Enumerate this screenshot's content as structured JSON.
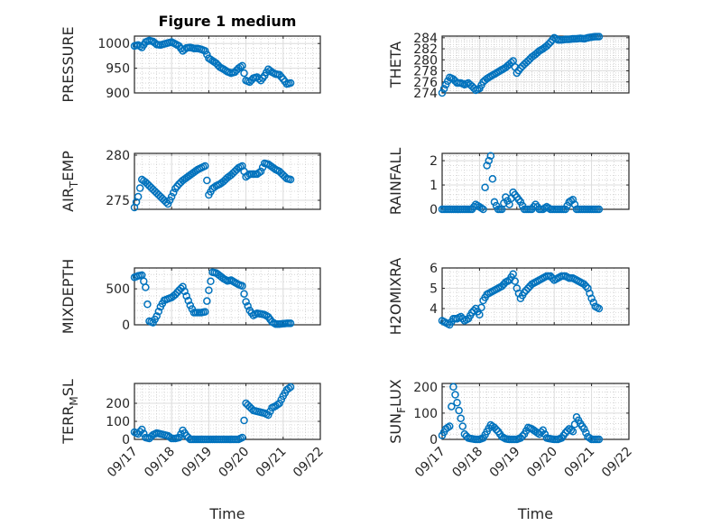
{
  "chart_data": {
    "type": "scatter",
    "title": "Figure 1 medium",
    "xlabel": "Time",
    "x_tick_labels": [
      "09/17",
      "09/18",
      "09/19",
      "09/20",
      "09/21",
      "09/22"
    ],
    "x_units": "days since 09/17",
    "xlim": [
      0,
      5
    ],
    "x": [
      0,
      0.1,
      0.2,
      0.3,
      0.4,
      0.5,
      0.6,
      0.7,
      0.8,
      0.9,
      1.0,
      1.1,
      1.2,
      1.3,
      1.4,
      1.5,
      1.6,
      1.7,
      1.8,
      1.9,
      2.0,
      2.1,
      2.2,
      2.3,
      2.4,
      2.5,
      2.6,
      2.7,
      2.8,
      2.9,
      3.0,
      3.1,
      3.2,
      3.3,
      3.4,
      3.5,
      3.6,
      3.7,
      3.8,
      3.9,
      4.0,
      4.1,
      4.2
    ],
    "marker_color": "#0072BD",
    "grid": "major+minor",
    "subplots": [
      {
        "ylabel": "PRESSURE",
        "ylim": [
          900,
          1015
        ],
        "yticks": [
          900,
          950,
          1000
        ],
        "values": [
          995,
          997,
          992,
          1003,
          1006,
          1004,
          998,
          997,
          999,
          1001,
          1003,
          999,
          995,
          985,
          991,
          992,
          990,
          990,
          988,
          985,
          970,
          965,
          960,
          952,
          948,
          943,
          940,
          942,
          950,
          955,
          925,
          922,
          930,
          932,
          925,
          935,
          948,
          942,
          938,
          937,
          928,
          918,
          920
        ]
      },
      {
        "ylabel": "THETA",
        "ylim": [
          274,
          284.3
        ],
        "yticks": [
          274,
          276,
          278,
          280,
          282,
          284
        ],
        "values": [
          274,
          275.5,
          276.8,
          276.5,
          275.8,
          275.8,
          275.5,
          275.8,
          275.2,
          274.5,
          274.8,
          276,
          276.6,
          277,
          277.4,
          277.8,
          278.2,
          278.6,
          279.2,
          279.8,
          277.6,
          278.5,
          279.2,
          279.8,
          280.5,
          281,
          281.6,
          282,
          282.5,
          283.2,
          284,
          283.6,
          283.6,
          283.7,
          283.7,
          283.8,
          283.8,
          283.9,
          283.8,
          284,
          284.1,
          284.2,
          284.2
        ]
      },
      {
        "ylabel": "AIR_TEMP",
        "ylim": [
          274,
          280.2
        ],
        "yticks": [
          275,
          280
        ],
        "values": [
          274.2,
          275.4,
          277.3,
          277,
          276.6,
          276.2,
          275.8,
          275.4,
          275,
          274.6,
          275.4,
          276.3,
          276.8,
          277.2,
          277.5,
          277.8,
          278.1,
          278.4,
          278.6,
          278.8,
          275.6,
          276.3,
          276.6,
          276.8,
          277.1,
          277.5,
          277.8,
          278.2,
          278.6,
          278.8,
          277.6,
          277.9,
          277.9,
          277.9,
          278.2,
          279.1,
          279,
          278.7,
          278.4,
          278.2,
          277.8,
          277.4,
          277.3
        ]
      },
      {
        "ylabel": "RAINFALL",
        "ylim": [
          0,
          2.3
        ],
        "yticks": [
          0,
          1,
          2
        ],
        "values": [
          0,
          0,
          0,
          0,
          0,
          0,
          0,
          0,
          0,
          0.2,
          0.1,
          0,
          1.8,
          2.2,
          0.3,
          0,
          0,
          0.5,
          0.2,
          0.7,
          0.5,
          0.3,
          0,
          0,
          0,
          0.2,
          0,
          0,
          0.1,
          0,
          0,
          0,
          0,
          0,
          0.3,
          0.4,
          0,
          0,
          0,
          0,
          0,
          0,
          0
        ]
      },
      {
        "ylabel": "MIXDEPTH",
        "ylim": [
          0,
          790
        ],
        "yticks": [
          0,
          500
        ],
        "values": [
          660,
          680,
          690,
          520,
          50,
          30,
          120,
          250,
          340,
          360,
          380,
          420,
          480,
          530,
          400,
          270,
          170,
          170,
          170,
          180,
          480,
          730,
          720,
          680,
          640,
          610,
          620,
          590,
          560,
          540,
          320,
          200,
          130,
          160,
          150,
          140,
          110,
          40,
          10,
          10,
          15,
          20,
          20
        ]
      },
      {
        "ylabel": "H2OMIXRA",
        "ylim": [
          3.2,
          6
        ],
        "yticks": [
          4,
          5,
          6
        ],
        "values": [
          3.4,
          3.3,
          3.2,
          3.5,
          3.5,
          3.6,
          3.4,
          3.5,
          3.8,
          4.0,
          3.7,
          4.4,
          4.7,
          4.8,
          4.9,
          5.0,
          5.1,
          5.3,
          5.4,
          5.7,
          5.0,
          4.5,
          4.8,
          5.0,
          5.2,
          5.3,
          5.4,
          5.5,
          5.6,
          5.6,
          5.4,
          5.5,
          5.6,
          5.6,
          5.5,
          5.5,
          5.4,
          5.3,
          5.2,
          5.0,
          4.5,
          4.1,
          4.0
        ]
      },
      {
        "ylabel": "TERR_MSL",
        "ylim": [
          0,
          310
        ],
        "yticks": [
          0,
          100,
          200
        ],
        "values": [
          40,
          30,
          55,
          10,
          5,
          25,
          35,
          30,
          25,
          20,
          5,
          5,
          10,
          50,
          20,
          0,
          0,
          0,
          0,
          0,
          0,
          0,
          0,
          0,
          0,
          0,
          0,
          0,
          0,
          10,
          200,
          180,
          160,
          155,
          150,
          145,
          135,
          175,
          185,
          200,
          240,
          275,
          290
        ]
      },
      {
        "ylabel": "SUN_FLUX",
        "ylim": [
          0,
          213
        ],
        "yticks": [
          0,
          100,
          200
        ],
        "values": [
          15,
          40,
          50,
          200,
          140,
          80,
          20,
          5,
          2,
          0,
          0,
          5,
          30,
          55,
          45,
          30,
          10,
          2,
          0,
          0,
          0,
          5,
          20,
          45,
          40,
          30,
          20,
          35,
          5,
          2,
          0,
          0,
          5,
          25,
          40,
          30,
          85,
          60,
          40,
          10,
          0,
          0,
          0
        ]
      }
    ]
  }
}
